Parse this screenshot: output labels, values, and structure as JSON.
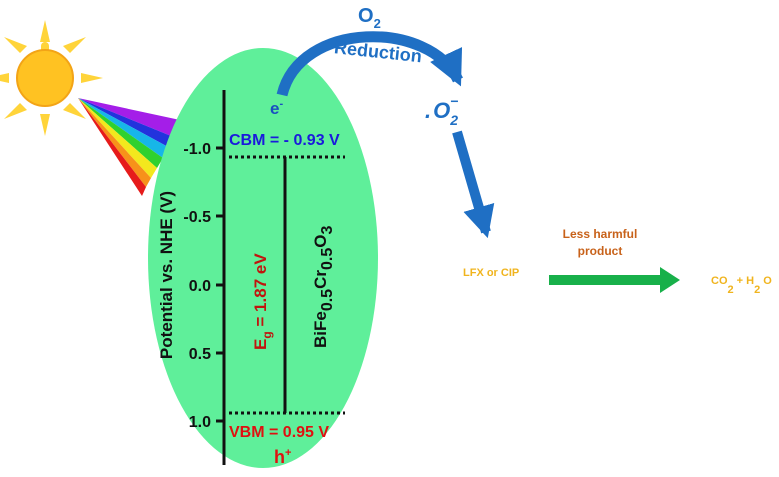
{
  "diagram": {
    "axis": {
      "label": "Potential vs. NHE (V)",
      "ticks": [
        "-1.0",
        "-0.5",
        "0.0",
        "0.5",
        "1.0"
      ]
    },
    "cbm_label": "CBM = - 0.93 V",
    "vbm_label": "VBM = 0.95 V",
    "electron": {
      "base": "e",
      "sup": "-"
    },
    "hole": {
      "base": "h",
      "sup": "+"
    },
    "bandgap": {
      "base": "E",
      "sub": "g",
      "rest": " = 1.87 eV"
    },
    "material": {
      "p1": "BiFe",
      "s1": "0.5",
      "p2": "Cr",
      "s2": "0.5",
      "p3": "O",
      "s3": "3"
    },
    "o2": {
      "base": "O",
      "sub": "2"
    },
    "reduction_label": "Reduction",
    "superoxide": {
      "dot": ".",
      "base": "O",
      "sub": "2",
      "sup": "−"
    },
    "pollutant_label": "LFX or CIP",
    "product_label_line1": "Less harmful",
    "product_label_line2": "product",
    "final": {
      "co": "CO",
      "s1": "2",
      "plus": " + ",
      "h": "H",
      "s2": "2",
      "o": "O"
    },
    "colors": {
      "ellipse": "#5fef9a",
      "cbm": "#1a1adc",
      "vbm": "#e01010",
      "bandgap": "#c0140e",
      "arrow_blue": "#1f6fc4",
      "arrow_green": "#18b04a",
      "product_label": "#c8621a",
      "pollutant": "#f0b41e",
      "sun_core": "#ffc222",
      "sun_rays": "#ffd43a"
    },
    "icons": [
      "sun-icon",
      "light-spectrum-icon"
    ]
  }
}
